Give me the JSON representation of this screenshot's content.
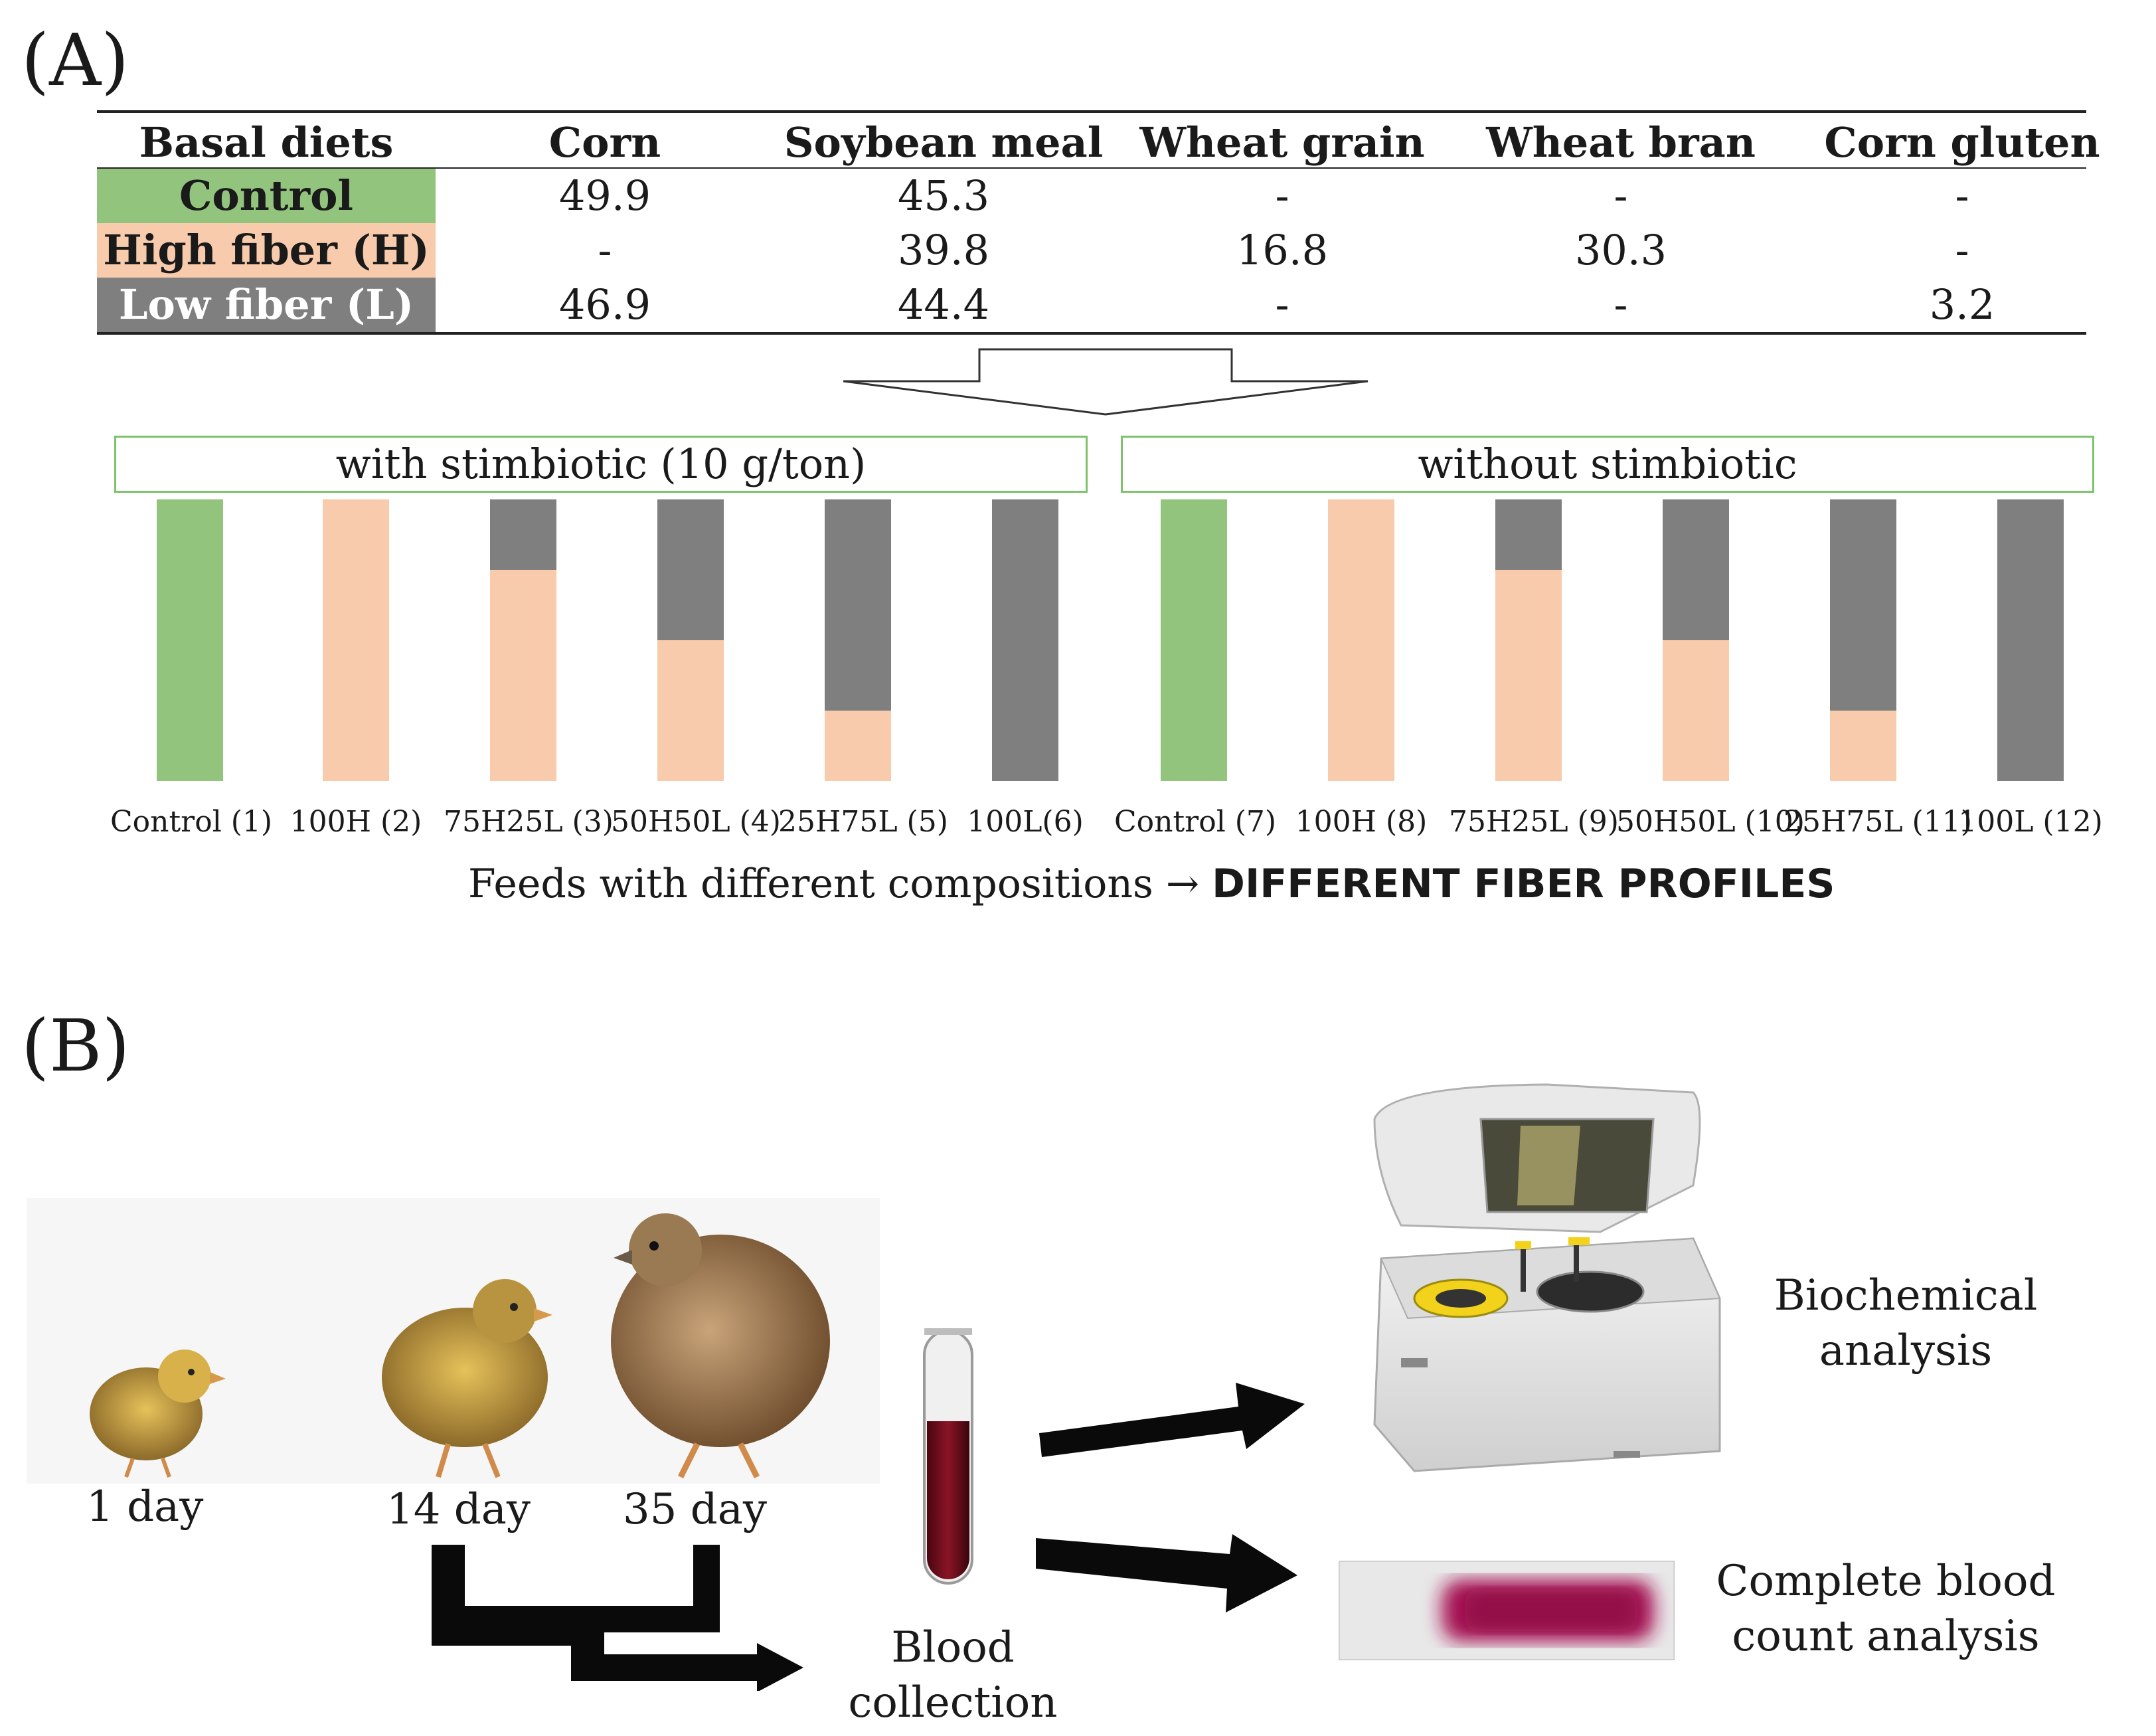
{
  "panel_a_label": "(A)",
  "panel_b_label": "(B)",
  "table": {
    "headers": [
      "Basal diets",
      "Corn",
      "Soybean meal",
      "Wheat grain",
      "Wheat bran",
      "Corn gluten"
    ],
    "rows": [
      {
        "label": "Control",
        "color": "#93c47d",
        "text_color": "#111111",
        "values": [
          "49.9",
          "45.3",
          "-",
          "-",
          "-"
        ]
      },
      {
        "label": "High fiber (H)",
        "color": "#f7cbac",
        "text_color": "#111111",
        "values": [
          "-",
          "39.8",
          "16.8",
          "30.3",
          "-"
        ]
      },
      {
        "label": "Low fiber (L)",
        "color": "#7f7f7f",
        "text_color": "#ffffff",
        "values": [
          "46.9",
          "44.4",
          "-",
          "-",
          "3.2"
        ]
      }
    ]
  },
  "groups": {
    "with": "with stimbiotic (10 g/ton)",
    "without": "without stimbiotic"
  },
  "chart_data": {
    "type": "bar",
    "categories": [
      "Control (1)",
      "100H (2)",
      "75H25L (3)",
      "50H50L (4)",
      "25H75L (5)",
      "100L(6)",
      "Control (7)",
      "100H (8)",
      "75H25L (9)",
      "50H50L (10)",
      "25H75L (11)",
      "100L (12)"
    ],
    "series": [
      {
        "name": "Control",
        "color": "#93c47d",
        "values": [
          100,
          0,
          0,
          0,
          0,
          0,
          100,
          0,
          0,
          0,
          0,
          0
        ]
      },
      {
        "name": "High fiber (H)",
        "color": "#f7cbac",
        "values": [
          0,
          100,
          75,
          50,
          25,
          0,
          0,
          100,
          75,
          50,
          25,
          0
        ]
      },
      {
        "name": "Low fiber (L)",
        "color": "#7f7f7f",
        "values": [
          0,
          0,
          25,
          50,
          75,
          100,
          0,
          0,
          25,
          50,
          75,
          100
        ]
      }
    ],
    "stacked": true,
    "ylim": [
      0,
      100
    ]
  },
  "caption_prefix": "Feeds with different compositions → ",
  "caption_bold": "DIFFERENT FIBER PROFILES",
  "days": [
    "1 day",
    "14 day",
    "35 day"
  ],
  "blood_collection": [
    "Blood",
    "collection"
  ],
  "biochemical": [
    "Biochemical",
    "analysis"
  ],
  "cbc": [
    "Complete blood",
    "count analysis"
  ]
}
